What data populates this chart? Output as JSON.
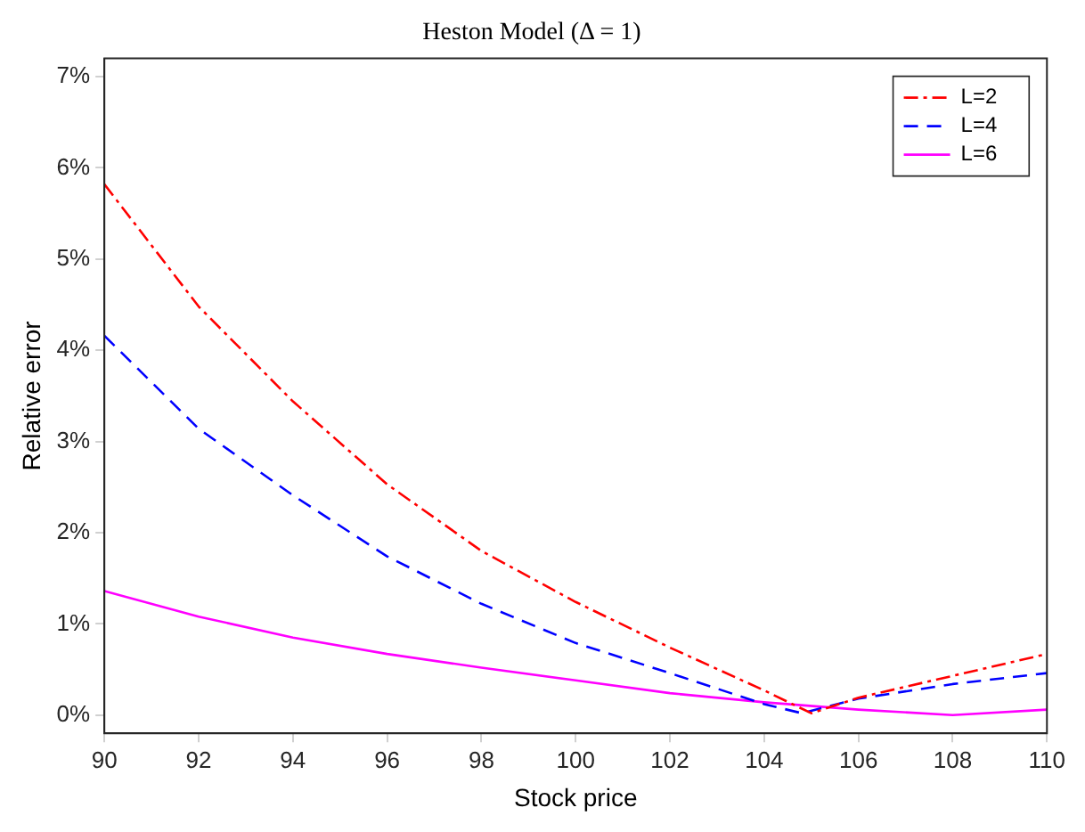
{
  "chart_data": {
    "type": "line",
    "title": "Heston Model (Δ = 1)",
    "xlabel": "Stock price",
    "ylabel": "Relative error",
    "xlim": [
      90,
      110
    ],
    "xticks": [
      90,
      92,
      94,
      96,
      98,
      100,
      102,
      104,
      106,
      108,
      110
    ],
    "ylim": [
      -0.2,
      7.2
    ],
    "yticks": [
      {
        "value": 0,
        "label": "0%"
      },
      {
        "value": 1,
        "label": "1%"
      },
      {
        "value": 2,
        "label": "2%"
      },
      {
        "value": 3,
        "label": "3%"
      },
      {
        "value": 4,
        "label": "4%"
      },
      {
        "value": 5,
        "label": "5%"
      },
      {
        "value": 6,
        "label": "6%"
      },
      {
        "value": 7,
        "label": "7%"
      }
    ],
    "grid": false,
    "legend": "top right",
    "marker": "none",
    "series": [
      {
        "name": "L=2",
        "color": "#ff0000",
        "line_style": "dashdot",
        "x": [
          90,
          92,
          94,
          96,
          98,
          100,
          102,
          104,
          105,
          106,
          108,
          110
        ],
        "values": [
          5.82,
          4.48,
          3.44,
          2.53,
          1.8,
          1.24,
          0.74,
          0.27,
          0.02,
          0.19,
          0.43,
          0.67
        ]
      },
      {
        "name": "L=4",
        "color": "#0000ff",
        "line_style": "dashed",
        "x": [
          90,
          92,
          94,
          96,
          98,
          100,
          102,
          104,
          104.8,
          106,
          108,
          110
        ],
        "values": [
          4.16,
          3.14,
          2.41,
          1.74,
          1.22,
          0.79,
          0.46,
          0.12,
          0.02,
          0.18,
          0.34,
          0.46
        ]
      },
      {
        "name": "L=6",
        "color": "#ff00ff",
        "line_style": "solid",
        "x": [
          90,
          92,
          94,
          96,
          98,
          100,
          102,
          104,
          106,
          108,
          110
        ],
        "values": [
          1.36,
          1.08,
          0.85,
          0.67,
          0.52,
          0.38,
          0.24,
          0.14,
          0.06,
          0.0,
          0.06
        ]
      }
    ]
  }
}
